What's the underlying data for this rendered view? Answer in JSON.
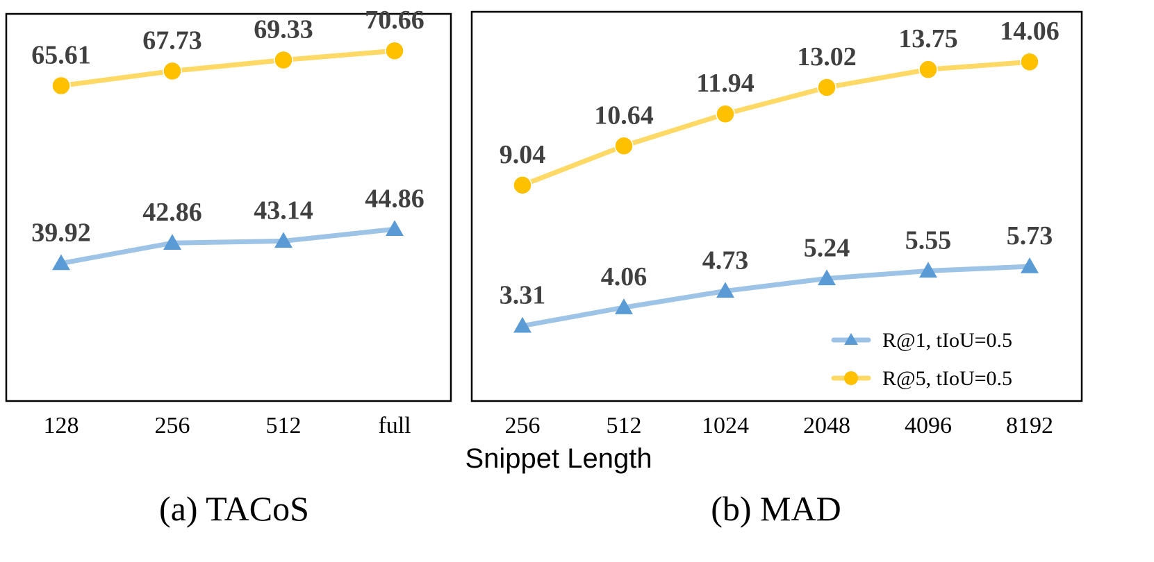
{
  "figure": {
    "xlabel": "Snippet Length",
    "legend": {
      "position": "bottom-right of panel (b)",
      "items": [
        {
          "label": "R@1, tIoU=0.5",
          "marker": "triangle",
          "color": "#9DC3E6",
          "marker_color": "#5B9BD5"
        },
        {
          "label": "R@5, tIoU=0.5",
          "marker": "circle",
          "color": "#FFD966",
          "marker_color": "#FFC000"
        }
      ]
    }
  },
  "chart_data": [
    {
      "type": "line",
      "panel": "a",
      "caption": "(a) TACoS",
      "categories": [
        "128",
        "256",
        "512",
        "full"
      ],
      "series": [
        {
          "name": "R@1, tIoU=0.5",
          "values": [
            39.92,
            42.86,
            43.14,
            44.86
          ],
          "color": "#9DC3E6",
          "marker": "triangle",
          "marker_color": "#5B9BD5"
        },
        {
          "name": "R@5, tIoU=0.5",
          "values": [
            65.61,
            67.73,
            69.33,
            70.66
          ],
          "color": "#FFD966",
          "marker": "circle",
          "marker_color": "#FFC000"
        }
      ],
      "ylim": [
        20,
        76
      ],
      "grid": false,
      "show_data_labels": true
    },
    {
      "type": "line",
      "panel": "b",
      "caption": "(b) MAD",
      "categories": [
        "256",
        "512",
        "1024",
        "2048",
        "4096",
        "8192"
      ],
      "series": [
        {
          "name": "R@1, tIoU=0.5",
          "values": [
            3.31,
            4.06,
            4.73,
            5.24,
            5.55,
            5.73
          ],
          "color": "#9DC3E6",
          "marker": "triangle",
          "marker_color": "#5B9BD5"
        },
        {
          "name": "R@5, tIoU=0.5",
          "values": [
            9.04,
            10.64,
            11.94,
            13.02,
            13.75,
            14.06
          ],
          "color": "#FFD966",
          "marker": "circle",
          "marker_color": "#FFC000"
        }
      ],
      "ylim": [
        0.25,
        16.1
      ],
      "grid": false,
      "show_data_labels": true
    }
  ]
}
